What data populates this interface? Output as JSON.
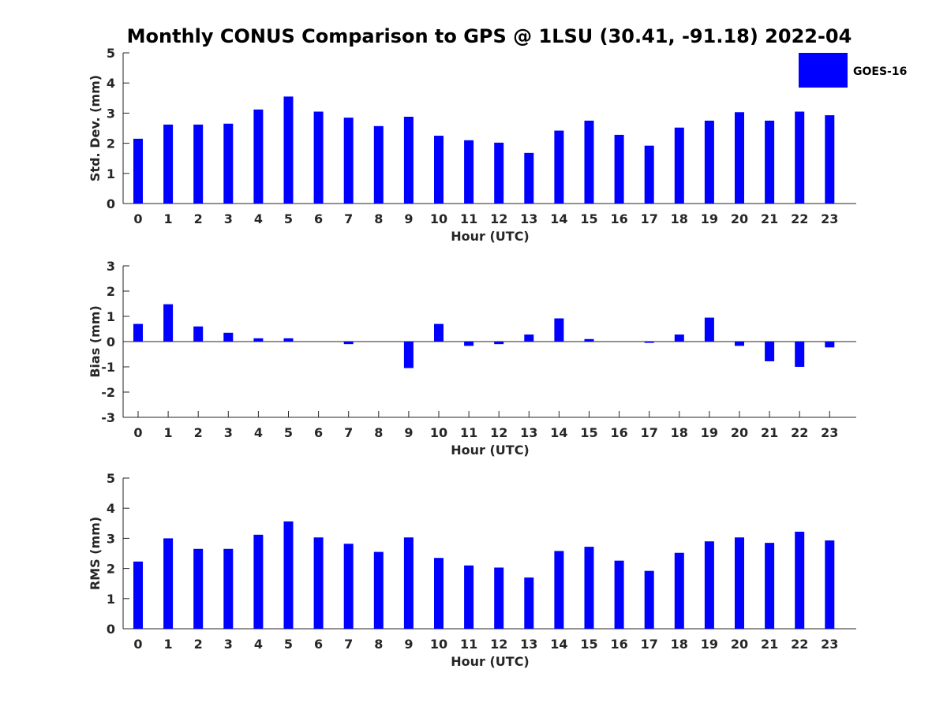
{
  "chart_data": {
    "title": "Monthly CONUS Comparison to GPS @ 1LSU (30.41, -91.18) 2022-04",
    "legend": {
      "label": "GOES-16",
      "color": "#0000ff",
      "placement": "top-right"
    },
    "panels": [
      {
        "type": "bar",
        "ylabel": "Std. Dev. (mm)",
        "xlabel": "Hour (UTC)",
        "ylim": [
          0,
          5
        ],
        "yticks": [
          "0",
          "1",
          "2",
          "3",
          "4",
          "5"
        ],
        "categories": [
          "0",
          "1",
          "2",
          "3",
          "4",
          "5",
          "6",
          "7",
          "8",
          "9",
          "10",
          "11",
          "12",
          "13",
          "14",
          "15",
          "16",
          "17",
          "18",
          "19",
          "20",
          "21",
          "22",
          "23"
        ],
        "series": [
          {
            "name": "GOES-16",
            "values": [
              2.15,
              2.62,
              2.62,
              2.65,
              3.12,
              3.55,
              3.05,
              2.85,
              2.57,
              2.88,
              2.25,
              2.1,
              2.02,
              1.68,
              2.42,
              2.75,
              2.28,
              1.92,
              2.52,
              2.75,
              3.03,
              2.75,
              3.05,
              2.93
            ]
          }
        ]
      },
      {
        "type": "bar",
        "ylabel": "Bias (mm)",
        "xlabel": "Hour (UTC)",
        "ylim": [
          -3,
          3
        ],
        "yticks": [
          "-3",
          "-2",
          "-1",
          "0",
          "1",
          "2",
          "3"
        ],
        "zero_line": true,
        "categories": [
          "0",
          "1",
          "2",
          "3",
          "4",
          "5",
          "6",
          "7",
          "8",
          "9",
          "10",
          "11",
          "12",
          "13",
          "14",
          "15",
          "16",
          "17",
          "18",
          "19",
          "20",
          "21",
          "22",
          "23"
        ],
        "series": [
          {
            "name": "GOES-16",
            "values": [
              0.7,
              1.48,
              0.6,
              0.35,
              0.13,
              0.13,
              0.0,
              -0.1,
              0.0,
              -1.05,
              0.7,
              -0.17,
              -0.1,
              0.28,
              0.92,
              0.1,
              0.0,
              -0.05,
              0.28,
              0.95,
              -0.17,
              -0.78,
              -1.0,
              -0.23
            ]
          }
        ]
      },
      {
        "type": "bar",
        "ylabel": "RMS (mm)",
        "xlabel": "Hour (UTC)",
        "ylim": [
          0,
          5
        ],
        "yticks": [
          "0",
          "1",
          "2",
          "3",
          "4",
          "5"
        ],
        "categories": [
          "0",
          "1",
          "2",
          "3",
          "4",
          "5",
          "6",
          "7",
          "8",
          "9",
          "10",
          "11",
          "12",
          "13",
          "14",
          "15",
          "16",
          "17",
          "18",
          "19",
          "20",
          "21",
          "22",
          "23"
        ],
        "series": [
          {
            "name": "GOES-16",
            "values": [
              2.23,
              3.0,
              2.65,
              2.65,
              3.12,
              3.56,
              3.03,
              2.82,
              2.55,
              3.03,
              2.35,
              2.1,
              2.03,
              1.7,
              2.58,
              2.72,
              2.26,
              1.92,
              2.52,
              2.9,
              3.03,
              2.85,
              3.22,
              2.93
            ]
          }
        ]
      }
    ]
  }
}
